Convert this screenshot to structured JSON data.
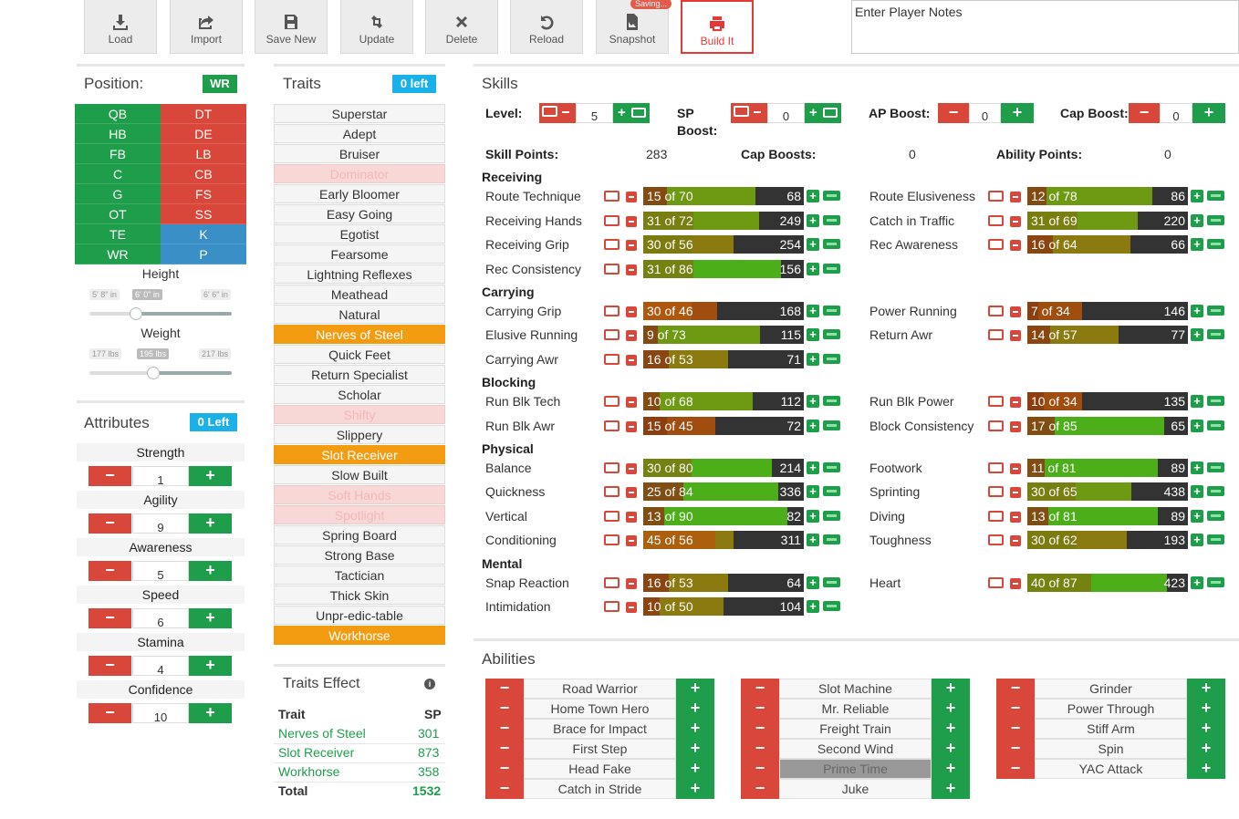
{
  "toolbar": {
    "load": "Load",
    "import": "Import",
    "save_new": "Save New",
    "update": "Update",
    "delete": "Delete",
    "reload": "Reload",
    "snapshot": "Snapshot",
    "saving_badge": "Saving...",
    "build_it": "Build It"
  },
  "notes": {
    "placeholder": "Enter Player Notes"
  },
  "position": {
    "title": "Position:",
    "current": "WR",
    "offense": [
      "QB",
      "HB",
      "FB",
      "C",
      "G",
      "OT",
      "TE",
      "WR"
    ],
    "defense": [
      "DT",
      "DE",
      "LB",
      "CB",
      "FS",
      "SS"
    ],
    "special": [
      "K",
      "P"
    ]
  },
  "height": {
    "label": "Height",
    "min": "5' 8\" in",
    "current": "6' 0\" in",
    "max": "6' 6\" in",
    "fraction": 0.33
  },
  "weight": {
    "label": "Weight",
    "min": "177 lbs",
    "current": "195 lbs",
    "max": "217 lbs",
    "fraction": 0.45
  },
  "attributes": {
    "title": "Attributes",
    "left": "0 Left",
    "items": [
      {
        "name": "Strength",
        "value": "1"
      },
      {
        "name": "Agility",
        "value": "9"
      },
      {
        "name": "Awareness",
        "value": "5"
      },
      {
        "name": "Speed",
        "value": "6"
      },
      {
        "name": "Stamina",
        "value": "4"
      },
      {
        "name": "Confidence",
        "value": "10"
      }
    ]
  },
  "traits": {
    "title": "Traits",
    "left": "0 left",
    "items": [
      {
        "name": "Superstar",
        "state": "normal"
      },
      {
        "name": "Adept",
        "state": "normal"
      },
      {
        "name": "Bruiser",
        "state": "normal"
      },
      {
        "name": "Dominator",
        "state": "disabled"
      },
      {
        "name": "Early Bloomer",
        "state": "normal"
      },
      {
        "name": "Easy Going",
        "state": "normal"
      },
      {
        "name": "Egotist",
        "state": "normal"
      },
      {
        "name": "Fearsome",
        "state": "normal"
      },
      {
        "name": "Lightning Reflexes",
        "state": "normal"
      },
      {
        "name": "Meathead",
        "state": "normal"
      },
      {
        "name": "Natural",
        "state": "normal"
      },
      {
        "name": "Nerves of Steel",
        "state": "selected"
      },
      {
        "name": "Quick Feet",
        "state": "normal"
      },
      {
        "name": "Return Specialist",
        "state": "normal"
      },
      {
        "name": "Scholar",
        "state": "normal"
      },
      {
        "name": "Shifty",
        "state": "disabled"
      },
      {
        "name": "Slippery",
        "state": "normal"
      },
      {
        "name": "Slot Receiver",
        "state": "selected"
      },
      {
        "name": "Slow Built",
        "state": "normal"
      },
      {
        "name": "Soft Hands",
        "state": "disabled"
      },
      {
        "name": "Spotlight",
        "state": "disabled"
      },
      {
        "name": "Spring Board",
        "state": "normal"
      },
      {
        "name": "Strong Base",
        "state": "normal"
      },
      {
        "name": "Tactician",
        "state": "normal"
      },
      {
        "name": "Thick Skin",
        "state": "normal"
      },
      {
        "name": "Unpr-edic-table",
        "state": "normal"
      },
      {
        "name": "Workhorse",
        "state": "selected"
      }
    ]
  },
  "traits_effect": {
    "title": "Traits Effect",
    "col_trait": "Trait",
    "col_sp": "SP",
    "rows": [
      {
        "trait": "Nerves of Steel",
        "sp": "301"
      },
      {
        "trait": "Slot Receiver",
        "sp": "873"
      },
      {
        "trait": "Workhorse",
        "sp": "358"
      }
    ],
    "total_label": "Total",
    "total_value": "1532"
  },
  "skills": {
    "title": "Skills",
    "level_label": "Level:",
    "level_value": "5",
    "sp_boost_label_1": "SP",
    "sp_boost_label_2": "Boost:",
    "sp_boost_value": "0",
    "ap_boost_label": "AP Boost:",
    "ap_boost_value": "0",
    "cap_boost_label": "Cap Boost:",
    "cap_boost_value": "0",
    "skill_points_label": "Skill Points:",
    "skill_points_value": "283",
    "cap_boosts_label": "Cap Boosts:",
    "cap_boosts_value": "0",
    "ability_points_label": "Ability Points:",
    "ability_points_value": "0",
    "groups": [
      {
        "name": "Receiving",
        "left": [
          {
            "name": "Route Technique",
            "level": 15,
            "cap": 70,
            "cost": "68"
          },
          {
            "name": "Receiving Hands",
            "level": 31,
            "cap": 72,
            "cost": "249"
          },
          {
            "name": "Receiving Grip",
            "level": 30,
            "cap": 56,
            "cost": "254"
          },
          {
            "name": "Rec Consistency",
            "level": 31,
            "cap": 86,
            "cost": "156"
          }
        ],
        "right": [
          {
            "name": "Route Elusiveness",
            "level": 12,
            "cap": 78,
            "cost": "86"
          },
          {
            "name": "Catch in Traffic",
            "level": 31,
            "cap": 69,
            "cost": "220"
          },
          {
            "name": "Rec Awareness",
            "level": 16,
            "cap": 64,
            "cost": "66"
          }
        ]
      },
      {
        "name": "Carrying",
        "left": [
          {
            "name": "Carrying Grip",
            "level": 30,
            "cap": 46,
            "cost": "168"
          },
          {
            "name": "Elusive Running",
            "level": 9,
            "cap": 73,
            "cost": "115"
          },
          {
            "name": "Carrying Awr",
            "level": 16,
            "cap": 53,
            "cost": "71"
          }
        ],
        "right": [
          {
            "name": "Power Running",
            "level": 7,
            "cap": 34,
            "cost": "146"
          },
          {
            "name": "Return Awr",
            "level": 14,
            "cap": 57,
            "cost": "77"
          }
        ]
      },
      {
        "name": "Blocking",
        "left": [
          {
            "name": "Run Blk Tech",
            "level": 10,
            "cap": 68,
            "cost": "112"
          },
          {
            "name": "Run Blk Awr",
            "level": 15,
            "cap": 45,
            "cost": "72"
          }
        ],
        "right": [
          {
            "name": "Run Blk Power",
            "level": 10,
            "cap": 34,
            "cost": "135"
          },
          {
            "name": "Block Consistency",
            "level": 17,
            "cap": 85,
            "cost": "65"
          }
        ]
      },
      {
        "name": "Physical",
        "left": [
          {
            "name": "Balance",
            "level": 30,
            "cap": 80,
            "cost": "214"
          },
          {
            "name": "Quickness",
            "level": 25,
            "cap": 84,
            "cost": "336"
          },
          {
            "name": "Vertical",
            "level": 13,
            "cap": 90,
            "cost": "82"
          },
          {
            "name": "Conditioning",
            "level": 45,
            "cap": 56,
            "cost": "311"
          }
        ],
        "right": [
          {
            "name": "Footwork",
            "level": 11,
            "cap": 81,
            "cost": "89"
          },
          {
            "name": "Sprinting",
            "level": 30,
            "cap": 65,
            "cost": "438"
          },
          {
            "name": "Diving",
            "level": 13,
            "cap": 81,
            "cost": "89"
          },
          {
            "name": "Toughness",
            "level": 30,
            "cap": 62,
            "cost": "193"
          }
        ]
      },
      {
        "name": "Mental",
        "left": [
          {
            "name": "Snap Reaction",
            "level": 16,
            "cap": 53,
            "cost": "64"
          },
          {
            "name": "Intimidation",
            "level": 10,
            "cap": 50,
            "cost": "104"
          }
        ],
        "right": [
          {
            "name": "Heart",
            "level": 40,
            "cap": 87,
            "cost": "423"
          }
        ]
      }
    ]
  },
  "abilities": {
    "title": "Abilities",
    "columns": [
      [
        {
          "name": "Road Warrior"
        },
        {
          "name": "Home Town Hero"
        },
        {
          "name": "Brace for Impact"
        },
        {
          "name": "First Step"
        },
        {
          "name": "Head Fake"
        },
        {
          "name": "Catch in Stride"
        }
      ],
      [
        {
          "name": "Slot Machine"
        },
        {
          "name": "Mr. Reliable"
        },
        {
          "name": "Freight Train"
        },
        {
          "name": "Second Wind"
        },
        {
          "name": "Prime Time",
          "dark": true
        },
        {
          "name": "Juke"
        }
      ],
      [
        {
          "name": "Grinder"
        },
        {
          "name": "Power Through"
        },
        {
          "name": "Stiff Arm"
        },
        {
          "name": "Spin"
        },
        {
          "name": "YAC Attack"
        }
      ]
    ]
  }
}
